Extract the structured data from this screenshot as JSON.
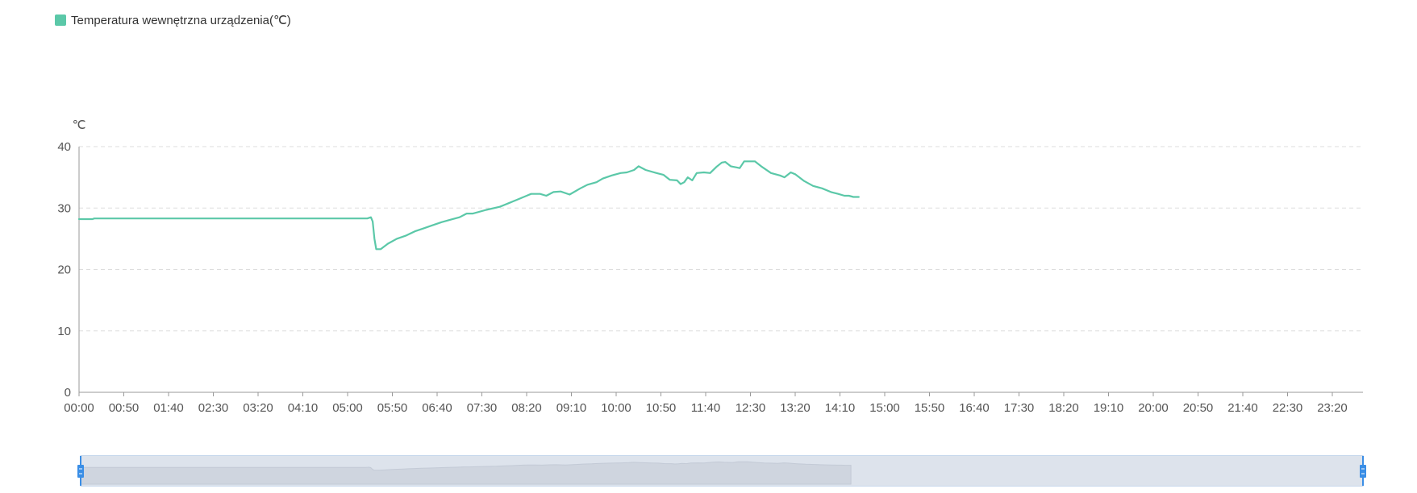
{
  "legend": {
    "label": "Temperatura wewnętrzna urządzenia(℃)",
    "color": "#5bc8a8"
  },
  "colors": {
    "series": "#5bc8a8",
    "axis": "#999999",
    "grid": "#dddddd",
    "zoom_fill": "#dde3ec",
    "zoom_border": "#8fb0d8",
    "zoom_shadow": "#cfd5df",
    "zoom_handle": "#3a8ee6"
  },
  "chart_data": {
    "type": "line",
    "ylabel": "℃",
    "ylim": [
      0,
      40
    ],
    "y_ticks": [
      0,
      10,
      20,
      30,
      40
    ],
    "x_tick_labels": [
      "00:00",
      "00:50",
      "01:40",
      "02:30",
      "03:20",
      "04:10",
      "05:00",
      "05:50",
      "06:40",
      "07:30",
      "08:20",
      "09:10",
      "10:00",
      "10:50",
      "11:40",
      "12:30",
      "13:20",
      "14:10",
      "15:00",
      "15:50",
      "16:40",
      "17:30",
      "18:20",
      "19:10",
      "20:00",
      "20:50",
      "21:40",
      "22:30",
      "23:20"
    ],
    "grid": true,
    "legend_position": "top-left",
    "dashed_grid": true,
    "series": [
      {
        "name": "Temperatura wewnętrzna urządzenia(℃)",
        "points": [
          [
            "00:00",
            28.2
          ],
          [
            "00:15",
            28.2
          ],
          [
            "00:17",
            28.3
          ],
          [
            "01:00",
            28.3
          ],
          [
            "02:00",
            28.3
          ],
          [
            "03:00",
            28.3
          ],
          [
            "04:00",
            28.3
          ],
          [
            "05:00",
            28.3
          ],
          [
            "05:22",
            28.3
          ],
          [
            "05:26",
            28.5
          ],
          [
            "05:28",
            27.8
          ],
          [
            "05:30",
            25.0
          ],
          [
            "05:32",
            23.3
          ],
          [
            "05:37",
            23.3
          ],
          [
            "05:45",
            24.2
          ],
          [
            "05:55",
            25.0
          ],
          [
            "06:05",
            25.5
          ],
          [
            "06:15",
            26.2
          ],
          [
            "06:25",
            26.7
          ],
          [
            "06:35",
            27.2
          ],
          [
            "06:45",
            27.7
          ],
          [
            "06:55",
            28.1
          ],
          [
            "07:05",
            28.5
          ],
          [
            "07:13",
            29.1
          ],
          [
            "07:20",
            29.1
          ],
          [
            "07:35",
            29.7
          ],
          [
            "07:50",
            30.2
          ],
          [
            "08:00",
            30.8
          ],
          [
            "08:10",
            31.4
          ],
          [
            "08:20",
            32.0
          ],
          [
            "08:25",
            32.3
          ],
          [
            "08:35",
            32.3
          ],
          [
            "08:42",
            32.0
          ],
          [
            "08:50",
            32.6
          ],
          [
            "08:58",
            32.7
          ],
          [
            "09:08",
            32.2
          ],
          [
            "09:20",
            33.2
          ],
          [
            "09:28",
            33.8
          ],
          [
            "09:38",
            34.2
          ],
          [
            "09:45",
            34.8
          ],
          [
            "09:55",
            35.3
          ],
          [
            "10:05",
            35.7
          ],
          [
            "10:12",
            35.8
          ],
          [
            "10:20",
            36.2
          ],
          [
            "10:25",
            36.8
          ],
          [
            "10:33",
            36.2
          ],
          [
            "10:45",
            35.7
          ],
          [
            "10:53",
            35.4
          ],
          [
            "11:00",
            34.6
          ],
          [
            "11:08",
            34.5
          ],
          [
            "11:12",
            33.9
          ],
          [
            "11:16",
            34.2
          ],
          [
            "11:20",
            35.0
          ],
          [
            "11:25",
            34.5
          ],
          [
            "11:30",
            35.7
          ],
          [
            "11:38",
            35.8
          ],
          [
            "11:45",
            35.7
          ],
          [
            "11:52",
            36.7
          ],
          [
            "11:58",
            37.4
          ],
          [
            "12:02",
            37.5
          ],
          [
            "12:08",
            36.8
          ],
          [
            "12:15",
            36.6
          ],
          [
            "12:18",
            36.5
          ],
          [
            "12:23",
            37.6
          ],
          [
            "12:35",
            37.6
          ],
          [
            "12:43",
            36.7
          ],
          [
            "12:53",
            35.7
          ],
          [
            "13:03",
            35.3
          ],
          [
            "13:08",
            35.0
          ],
          [
            "13:15",
            35.8
          ],
          [
            "13:20",
            35.5
          ],
          [
            "13:30",
            34.4
          ],
          [
            "13:40",
            33.6
          ],
          [
            "13:50",
            33.2
          ],
          [
            "14:00",
            32.6
          ],
          [
            "14:08",
            32.3
          ],
          [
            "14:15",
            32.0
          ],
          [
            "14:20",
            32.0
          ],
          [
            "14:25",
            31.8
          ],
          [
            "14:31",
            31.8
          ]
        ]
      }
    ],
    "data_zoom": {
      "start_percent": 0,
      "end_percent": 100
    }
  }
}
